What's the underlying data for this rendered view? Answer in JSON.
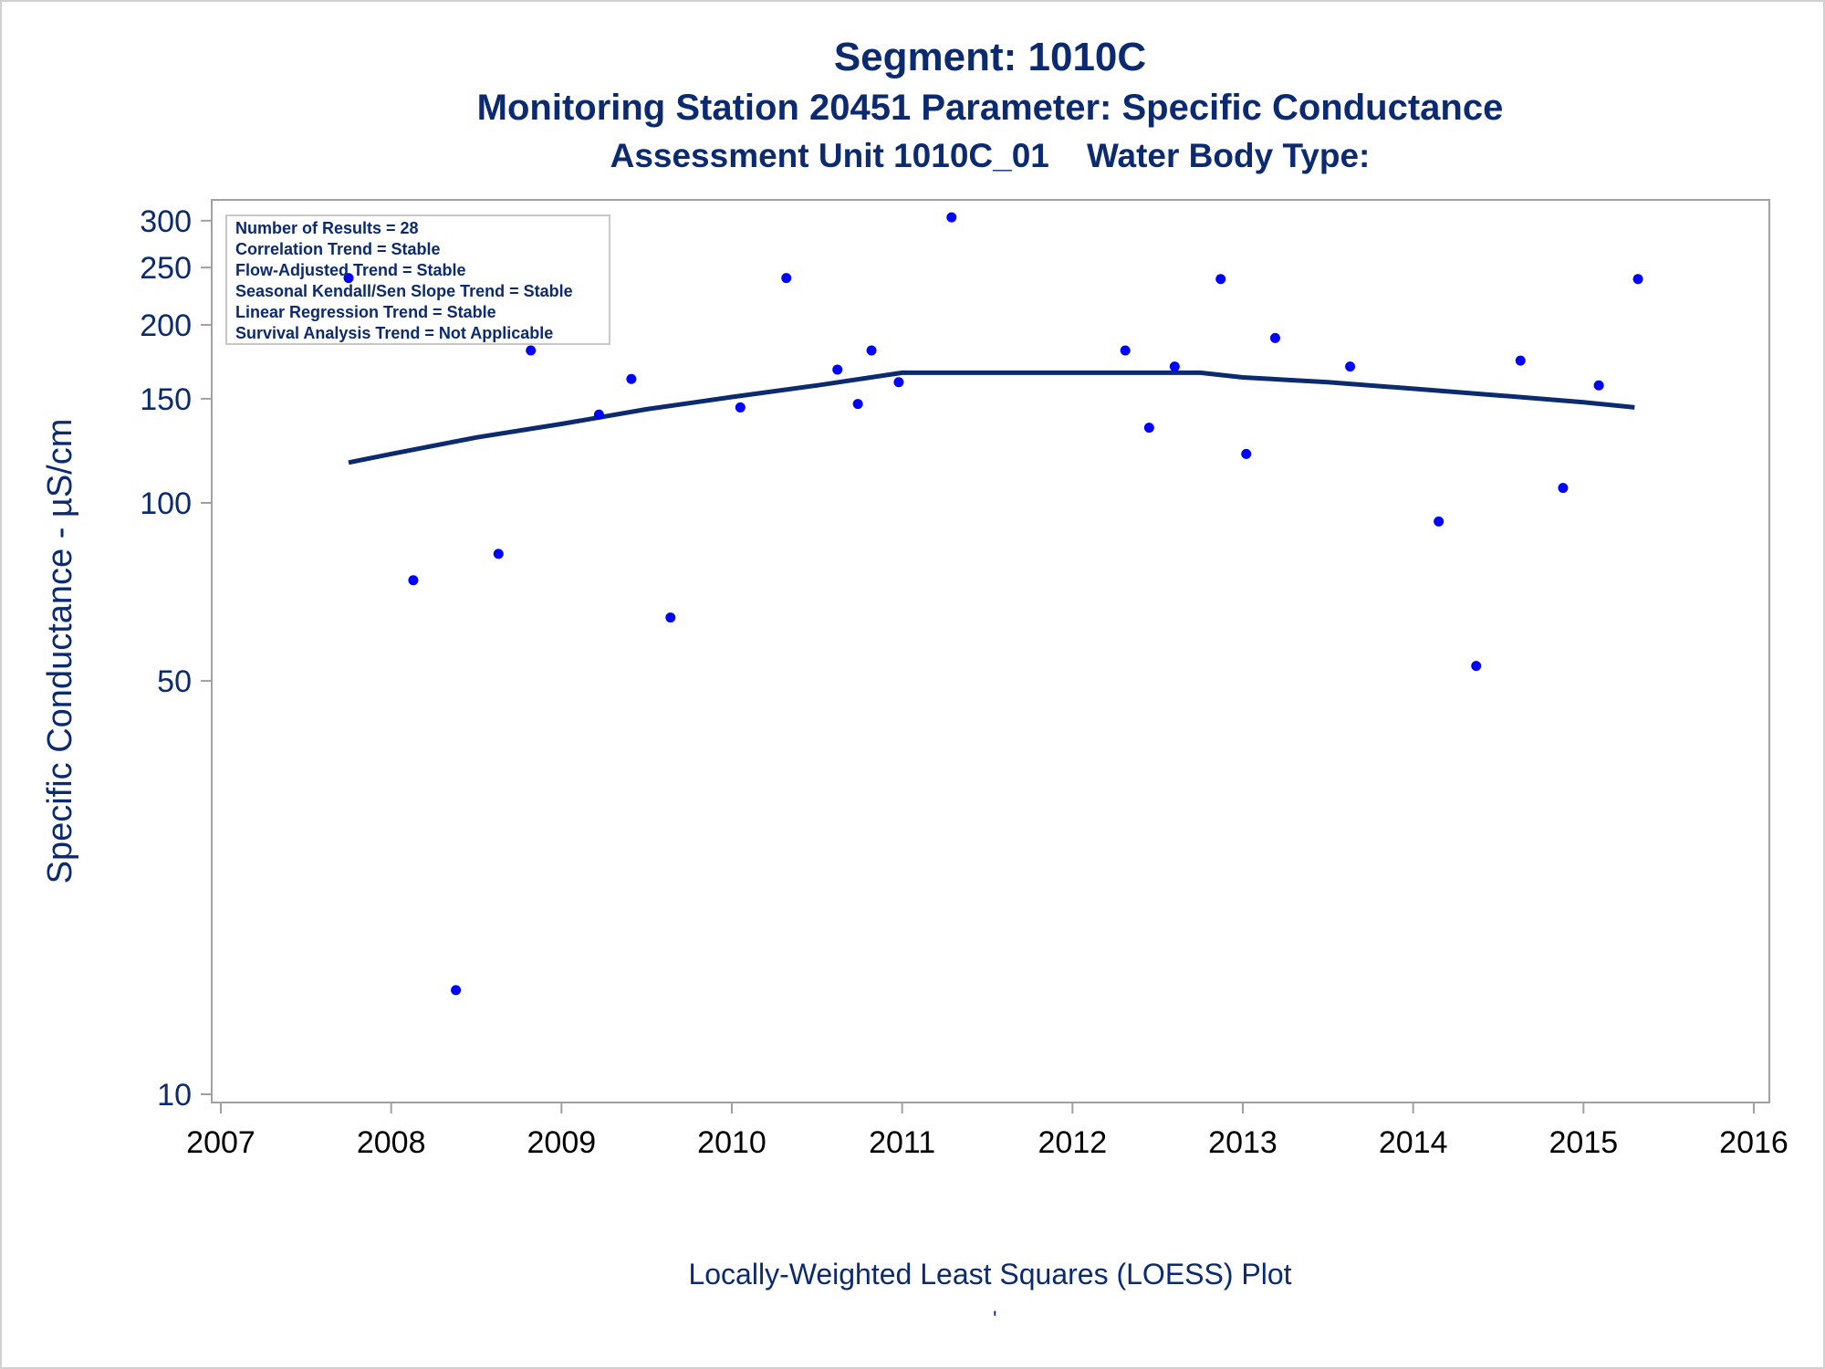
{
  "page": {
    "title": "Segment: 1010C",
    "subtitle1": "Monitoring Station 20451 Parameter: Specific Conductance",
    "subtitle2": "Assessment Unit 1010C_01    Water Body Type:",
    "footnote": "Locally-Weighted Least Squares (LOESS) Plot",
    "footnote_mark": "'"
  },
  "colors": {
    "text": "#0b2a6f",
    "points": "#0000ff",
    "line": "#0b2a6f",
    "axis": "#a0a0a0"
  },
  "chart_data": {
    "type": "scatter",
    "ylabel": "Specific Conductance -  µS/cm",
    "xlabel": "",
    "yscale": "log",
    "ylim": [
      10,
      310
    ],
    "xlim": [
      2007,
      2016
    ],
    "yticks": [
      10,
      50,
      100,
      150,
      200,
      250,
      300
    ],
    "xticks": [
      2007,
      2008,
      2009,
      2010,
      2011,
      2012,
      2013,
      2014,
      2015,
      2016
    ],
    "grid": false,
    "legend_position": "top-left",
    "stats_box": [
      "Number of Results = 28",
      "Correlation Trend = Stable",
      "Flow-Adjusted Trend = Stable",
      "Seasonal Kendall/Sen Slope Trend = Stable",
      "Linear Regression Trend = Stable",
      "Survival Analysis Trend = Not Applicable"
    ],
    "points": [
      {
        "x": 2007.75,
        "y": 240
      },
      {
        "x": 2008.13,
        "y": 74
      },
      {
        "x": 2008.38,
        "y": 15
      },
      {
        "x": 2008.63,
        "y": 82
      },
      {
        "x": 2008.82,
        "y": 181
      },
      {
        "x": 2009.22,
        "y": 141
      },
      {
        "x": 2009.41,
        "y": 162
      },
      {
        "x": 2009.64,
        "y": 64
      },
      {
        "x": 2010.05,
        "y": 145
      },
      {
        "x": 2010.32,
        "y": 240
      },
      {
        "x": 2010.62,
        "y": 168
      },
      {
        "x": 2010.74,
        "y": 147
      },
      {
        "x": 2010.82,
        "y": 181
      },
      {
        "x": 2010.98,
        "y": 160
      },
      {
        "x": 2011.29,
        "y": 304
      },
      {
        "x": 2012.31,
        "y": 181
      },
      {
        "x": 2012.45,
        "y": 134
      },
      {
        "x": 2012.6,
        "y": 170
      },
      {
        "x": 2012.87,
        "y": 239
      },
      {
        "x": 2013.02,
        "y": 121
      },
      {
        "x": 2013.19,
        "y": 190
      },
      {
        "x": 2013.63,
        "y": 170
      },
      {
        "x": 2014.15,
        "y": 93
      },
      {
        "x": 2014.37,
        "y": 53
      },
      {
        "x": 2014.63,
        "y": 174
      },
      {
        "x": 2014.88,
        "y": 106
      },
      {
        "x": 2015.09,
        "y": 158
      },
      {
        "x": 2015.32,
        "y": 239
      }
    ],
    "loess_line": [
      {
        "x": 2007.75,
        "y": 117
      },
      {
        "x": 2008.0,
        "y": 121
      },
      {
        "x": 2008.5,
        "y": 129
      },
      {
        "x": 2009.0,
        "y": 136
      },
      {
        "x": 2009.5,
        "y": 144
      },
      {
        "x": 2010.0,
        "y": 151
      },
      {
        "x": 2010.5,
        "y": 158
      },
      {
        "x": 2011.0,
        "y": 166
      },
      {
        "x": 2011.5,
        "y": 166
      },
      {
        "x": 2012.0,
        "y": 166
      },
      {
        "x": 2012.5,
        "y": 166
      },
      {
        "x": 2012.75,
        "y": 166
      },
      {
        "x": 2013.0,
        "y": 163
      },
      {
        "x": 2013.5,
        "y": 160
      },
      {
        "x": 2014.0,
        "y": 156
      },
      {
        "x": 2014.5,
        "y": 152
      },
      {
        "x": 2015.0,
        "y": 148
      },
      {
        "x": 2015.3,
        "y": 145
      }
    ]
  }
}
